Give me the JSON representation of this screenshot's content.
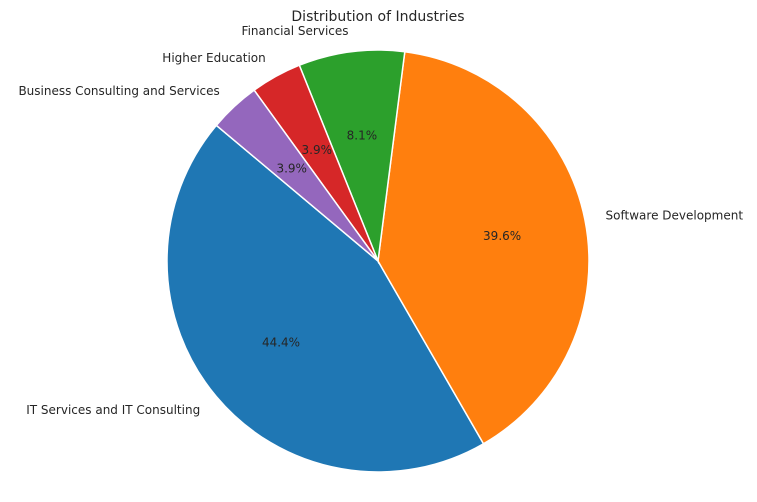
{
  "chart_data": {
    "type": "pie",
    "title": "Distribution of Industries",
    "categories": [
      "IT Services and IT Consulting",
      "Software Development",
      "Financial Services",
      "Higher Education",
      "Business Consulting and Services"
    ],
    "values": [
      44.4,
      39.6,
      8.1,
      3.9,
      3.9
    ],
    "percent_labels": [
      "44.4%",
      "39.6%",
      "8.1%",
      "3.9%",
      "3.9%"
    ],
    "colors": [
      "#1f77b4",
      "#ff7f0e",
      "#2ca02c",
      "#d62728",
      "#9467bd"
    ]
  }
}
